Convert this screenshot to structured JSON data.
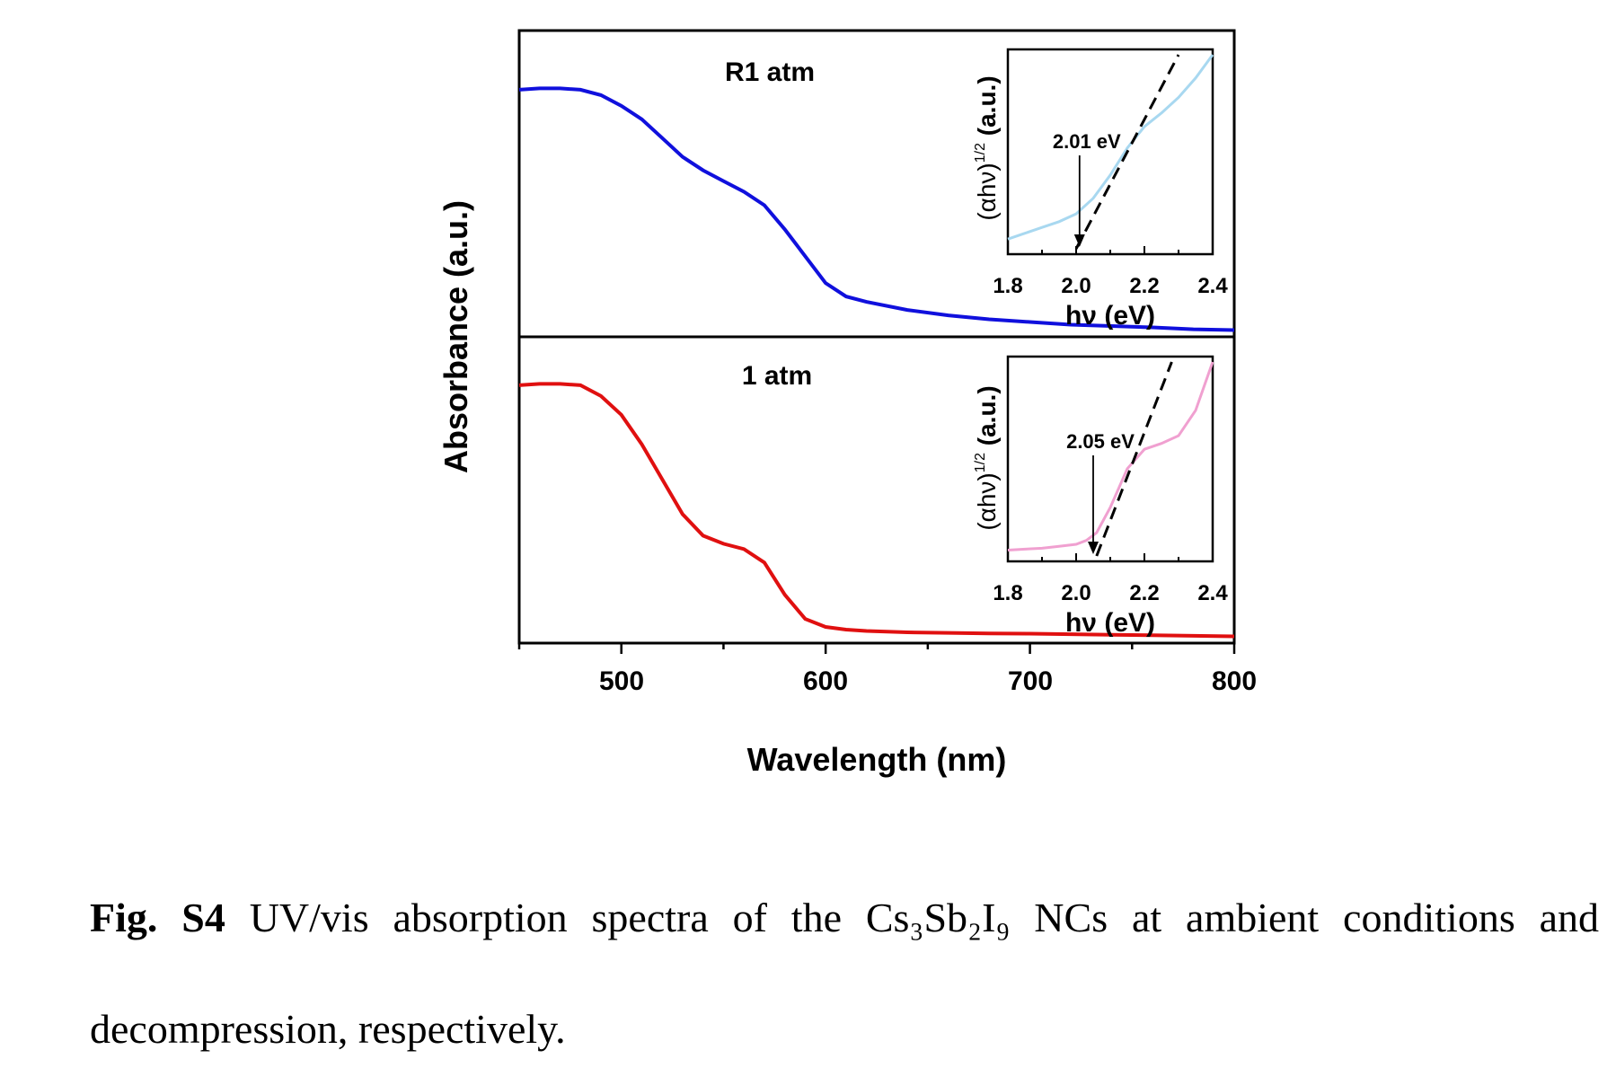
{
  "chart_data": {
    "type": "line",
    "xlabel": "Wavelength (nm)",
    "ylabel": "Absorbance (a.u.)",
    "xlim": [
      450,
      800
    ],
    "x_ticks": [
      "500",
      "600",
      "700",
      "800"
    ],
    "panels": [
      {
        "label": "R1 atm",
        "color": "#1010dd",
        "series": {
          "x": [
            450,
            460,
            470,
            480,
            490,
            500,
            510,
            520,
            530,
            540,
            550,
            560,
            570,
            580,
            590,
            600,
            610,
            620,
            640,
            660,
            680,
            700,
            720,
            740,
            760,
            780,
            800
          ],
          "y": [
            0.9,
            0.905,
            0.905,
            0.9,
            0.88,
            0.84,
            0.79,
            0.72,
            0.65,
            0.6,
            0.56,
            0.52,
            0.47,
            0.38,
            0.28,
            0.18,
            0.13,
            0.11,
            0.08,
            0.06,
            0.045,
            0.035,
            0.025,
            0.02,
            0.015,
            0.008,
            0.005
          ]
        },
        "inset": {
          "xlabel": "hν (eV)",
          "ylabel": "(αhν)^1/2 (a.u.)",
          "xlim": [
            1.8,
            2.4
          ],
          "x_ticks": [
            "1.8",
            "2.0",
            "2.2",
            "2.4"
          ],
          "color": "#a8d8f0",
          "annotation": "2.01 eV",
          "band_gap": 2.01,
          "curve": {
            "x": [
              1.8,
              1.85,
              1.9,
              1.95,
              2.0,
              2.05,
              2.1,
              2.15,
              2.2,
              2.25,
              2.3,
              2.35,
              2.4
            ],
            "y": [
              0.05,
              0.08,
              0.11,
              0.14,
              0.18,
              0.26,
              0.38,
              0.52,
              0.63,
              0.7,
              0.78,
              0.88,
              1.0
            ]
          },
          "fit_line": {
            "x": [
              2.0,
              2.3
            ],
            "y": [
              0.0,
              1.0
            ]
          }
        }
      },
      {
        "label": "1 atm",
        "color": "#e01010",
        "series": {
          "x": [
            450,
            460,
            470,
            480,
            490,
            500,
            510,
            520,
            530,
            540,
            550,
            560,
            570,
            580,
            590,
            600,
            610,
            620,
            640,
            660,
            680,
            700,
            720,
            740,
            760,
            780,
            800
          ],
          "y": [
            0.94,
            0.945,
            0.945,
            0.94,
            0.9,
            0.83,
            0.72,
            0.59,
            0.46,
            0.38,
            0.35,
            0.33,
            0.28,
            0.16,
            0.07,
            0.04,
            0.03,
            0.025,
            0.02,
            0.018,
            0.016,
            0.015,
            0.013,
            0.011,
            0.009,
            0.007,
            0.005
          ]
        },
        "inset": {
          "xlabel": "hν (eV)",
          "ylabel": "(αhν)^1/2 (a.u.)",
          "xlim": [
            1.8,
            2.4
          ],
          "x_ticks": [
            "1.8",
            "2.0",
            "2.2",
            "2.4"
          ],
          "color": "#f0a0d0",
          "annotation": "2.05 eV",
          "band_gap": 2.05,
          "curve": {
            "x": [
              1.8,
              1.85,
              1.9,
              1.95,
              2.0,
              2.03,
              2.06,
              2.1,
              2.15,
              2.2,
              2.25,
              2.3,
              2.35,
              2.4
            ],
            "y": [
              0.03,
              0.035,
              0.04,
              0.05,
              0.06,
              0.08,
              0.12,
              0.25,
              0.45,
              0.55,
              0.58,
              0.62,
              0.75,
              1.0
            ]
          },
          "fit_line": {
            "x": [
              2.06,
              2.28
            ],
            "y": [
              0.0,
              1.0
            ]
          }
        }
      }
    ]
  },
  "caption": {
    "label": "Fig. S4",
    "text": " UV/vis absorption spectra of the Cs₃Sb₂I₉ NCs at ambient conditions and decompression, respectively."
  }
}
